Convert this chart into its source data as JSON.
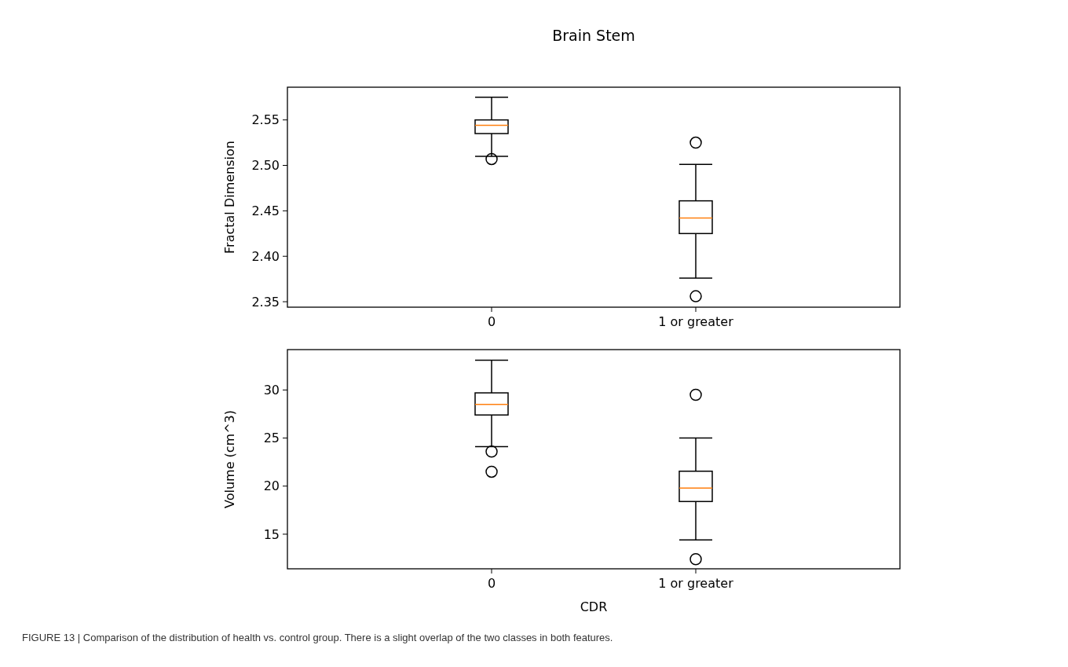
{
  "chart_data": [
    {
      "type": "box",
      "title": "Brain Stem",
      "ylabel": "Fractal Dimension",
      "categories": [
        "0",
        "1 or greater"
      ],
      "ylim": [
        2.344,
        2.586
      ],
      "yticks": [
        {
          "value": 2.35,
          "label": "2.35"
        },
        {
          "value": 2.4,
          "label": "2.40"
        },
        {
          "value": 2.45,
          "label": "2.45"
        },
        {
          "value": 2.5,
          "label": "2.50"
        },
        {
          "value": 2.55,
          "label": "2.55"
        }
      ],
      "grid": false,
      "boxes": [
        {
          "low": 2.51,
          "q1": 2.535,
          "median": 2.544,
          "q3": 2.55,
          "high": 2.575,
          "outliers": [
            2.507
          ]
        },
        {
          "low": 2.376,
          "q1": 2.425,
          "median": 2.442,
          "q3": 2.461,
          "high": 2.501,
          "outliers": [
            2.525,
            2.356
          ]
        }
      ]
    },
    {
      "type": "box",
      "xlabel": "CDR",
      "ylabel": "Volume (cm^3)",
      "categories": [
        "0",
        "1 or greater"
      ],
      "ylim": [
        11.4,
        34.2
      ],
      "yticks": [
        15,
        20,
        25,
        30
      ],
      "grid": false,
      "boxes": [
        {
          "low": 24.1,
          "q1": 27.4,
          "median": 28.5,
          "q3": 29.7,
          "high": 33.1,
          "outliers": [
            23.6,
            21.5
          ]
        },
        {
          "low": 14.4,
          "q1": 18.4,
          "median": 19.8,
          "q3": 21.55,
          "high": 25.0,
          "outliers": [
            29.5,
            12.4
          ]
        }
      ],
      "annotations": [
        "FIGURE 13 | Comparison of the distribution of health vs. control group. There is a slight overlap of the two classes in both features."
      ]
    }
  ]
}
